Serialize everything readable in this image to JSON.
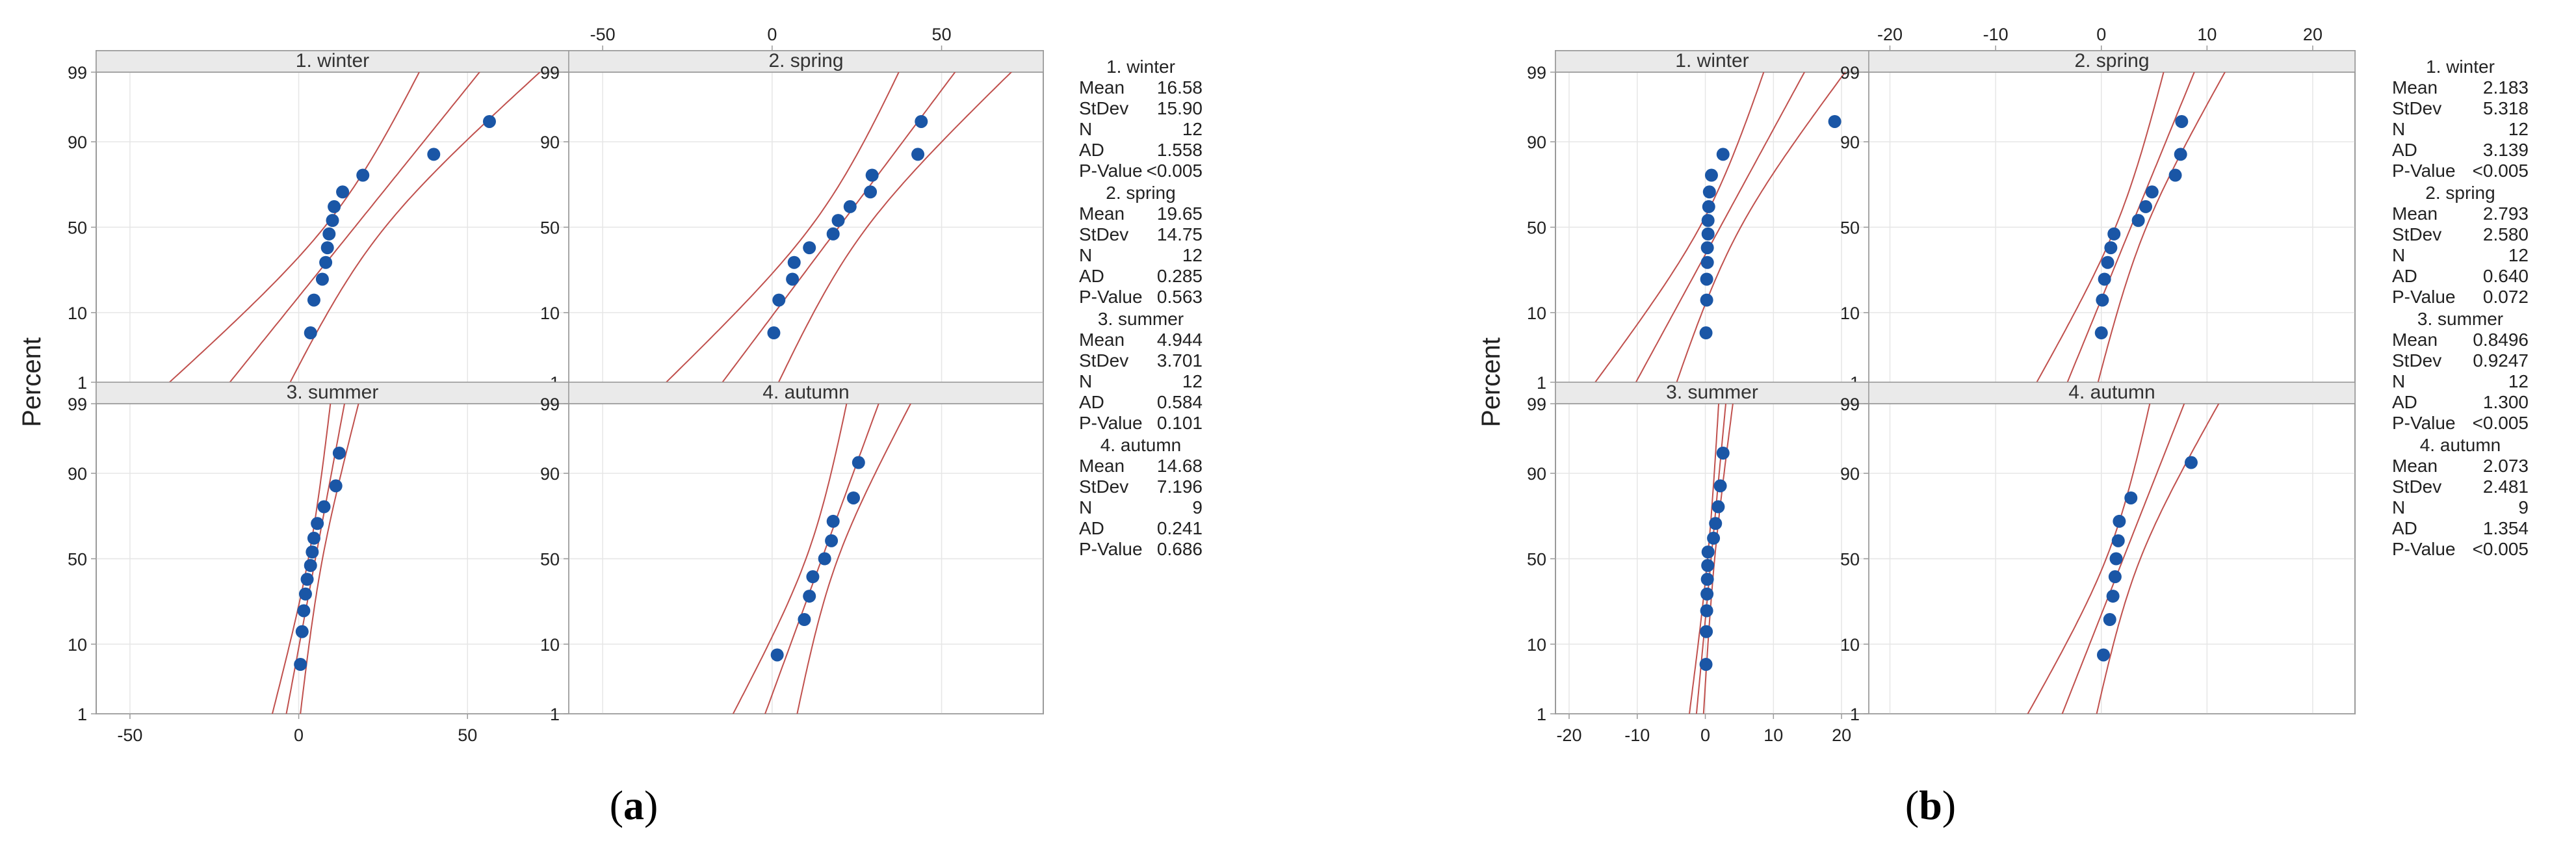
{
  "figure": {
    "ylabel": "Percent",
    "prob_ticks": [
      1,
      10,
      50,
      90,
      99
    ]
  },
  "colors": {
    "point": "#1a56a6",
    "ci_line": "#c0504d",
    "fit_line": "#c0504d",
    "grid": "#e6e6e6",
    "strip": "#eaeaea",
    "frame": "#9a9a9a"
  },
  "chart_data": [
    {
      "type": "scatter",
      "subtitle_label": "a",
      "ylabel": "Percent",
      "xlim": [
        -60,
        80
      ],
      "xticks": [
        -50,
        0,
        50
      ],
      "ylim_percent": [
        1,
        99
      ],
      "yticks": [
        1,
        10,
        50,
        90,
        99
      ],
      "panels": [
        {
          "title": "1. winter",
          "x": [
            3.5,
            4.5,
            7,
            8,
            8.5,
            9,
            10,
            10.5,
            13,
            19,
            40,
            56.5
          ],
          "stats": {
            "Mean": "16.58",
            "StDev": "15.90",
            "N": "12",
            "AD": "1.558",
            "P-Value": "<0.005"
          },
          "mean": 16.58,
          "sd": 15.9,
          "n": 12
        },
        {
          "title": "2. spring",
          "x": [
            0.5,
            2,
            6,
            6.5,
            11,
            18,
            19.5,
            23,
            29,
            29.5,
            43,
            44
          ],
          "stats": {
            "Mean": "19.65",
            "StDev": "14.75",
            "N": "12",
            "AD": "0.285",
            "P-Value": "0.563"
          },
          "mean": 19.65,
          "sd": 14.75,
          "n": 12
        },
        {
          "title": "3. summer",
          "x": [
            0.5,
            1,
            1.5,
            2,
            2.5,
            3.5,
            4,
            4.5,
            5.5,
            7.5,
            11,
            12
          ],
          "stats": {
            "Mean": "4.944",
            "StDev": "3.701",
            "N": "12",
            "AD": "0.584",
            "P-Value": "0.101"
          },
          "mean": 4.944,
          "sd": 3.701,
          "n": 12
        },
        {
          "title": "4. autumn",
          "x": [
            1.5,
            9.5,
            11,
            12,
            15.5,
            17.5,
            18,
            24,
            25.5
          ],
          "stats": {
            "Mean": "14.68",
            "StDev": "7.196",
            "N": "9",
            "AD": "0.241",
            "P-Value": "0.686"
          },
          "mean": 14.68,
          "sd": 7.196,
          "n": 9
        }
      ]
    },
    {
      "type": "scatter",
      "subtitle_label": "b",
      "ylabel": "Percent",
      "xlim": [
        -22,
        24
      ],
      "xticks": [
        -20,
        -10,
        0,
        10,
        20
      ],
      "ylim_percent": [
        1,
        99
      ],
      "yticks": [
        1,
        10,
        50,
        90,
        99
      ],
      "panels": [
        {
          "title": "1. winter",
          "x": [
            0.1,
            0.2,
            0.2,
            0.3,
            0.3,
            0.4,
            0.4,
            0.5,
            0.6,
            0.9,
            2.6,
            19
          ],
          "stats": {
            "Mean": "2.183",
            "StDev": "5.318",
            "N": "12",
            "AD": "3.139",
            "P-Value": "<0.005"
          },
          "mean": 2.183,
          "sd": 5.318,
          "n": 12
        },
        {
          "title": "2. spring",
          "x": [
            0,
            0.1,
            0.3,
            0.6,
            0.9,
            1.2,
            3.5,
            4.2,
            4.8,
            7,
            7.5,
            7.6
          ],
          "stats": {
            "Mean": "2.793",
            "StDev": "2.580",
            "N": "12",
            "AD": "0.640",
            "P-Value": "0.072"
          },
          "mean": 2.793,
          "sd": 2.58,
          "n": 12
        },
        {
          "title": "3. summer",
          "x": [
            0.1,
            0.15,
            0.2,
            0.25,
            0.3,
            0.35,
            0.4,
            1.2,
            1.5,
            1.9,
            2.2,
            2.6
          ],
          "stats": {
            "Mean": "0.8496",
            "StDev": "0.9247",
            "N": "12",
            "AD": "1.300",
            "P-Value": "<0.005"
          },
          "mean": 0.8496,
          "sd": 0.9247,
          "n": 12
        },
        {
          "title": "4. autumn",
          "x": [
            0.2,
            0.8,
            1.1,
            1.3,
            1.4,
            1.6,
            1.7,
            2.8,
            8.5
          ],
          "stats": {
            "Mean": "2.073",
            "StDev": "2.481",
            "N": "9",
            "AD": "1.354",
            "P-Value": "<0.005"
          },
          "mean": 2.073,
          "sd": 2.481,
          "n": 9
        }
      ]
    }
  ]
}
